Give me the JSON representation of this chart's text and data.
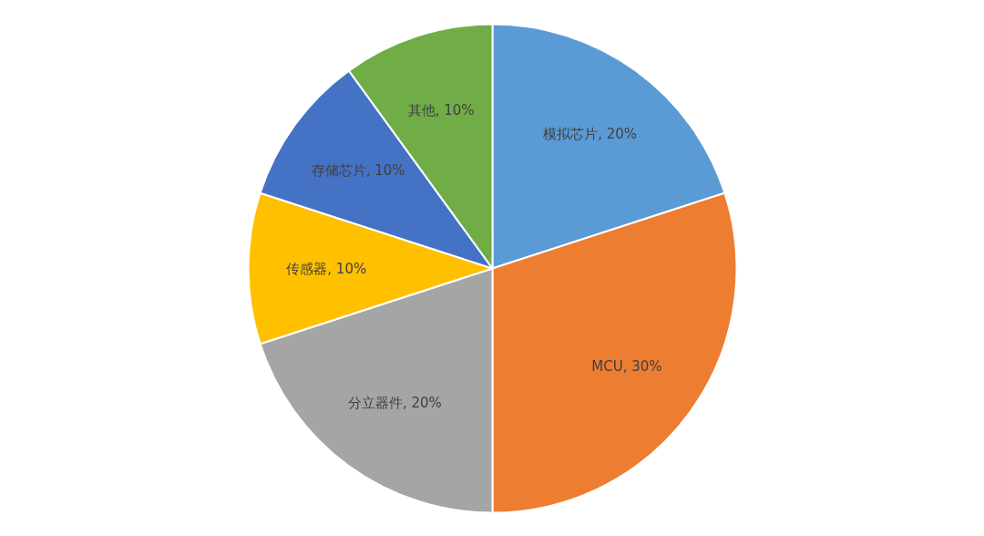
{
  "chart_data": {
    "type": "pie",
    "categories": [
      "模拟芯片",
      "MCU",
      "分立器件",
      "传感器",
      "存储芯片",
      "其他"
    ],
    "values": [
      20,
      30,
      20,
      10,
      10,
      10
    ],
    "colors": [
      "#5b9bd5",
      "#ed7d31",
      "#a5a5a5",
      "#ffc000",
      "#4472c4",
      "#70ad47"
    ],
    "value_labels": [
      "20%",
      "30%",
      "20%",
      "10%",
      "10%",
      "10%"
    ]
  }
}
